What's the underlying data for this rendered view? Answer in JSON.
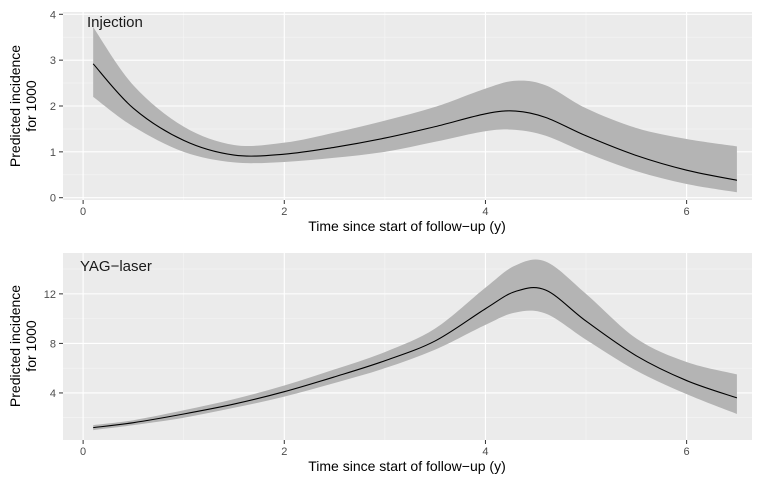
{
  "colors": {
    "panel_background": "#ebebeb",
    "grid_major": "#ffffff",
    "grid_minor": "#f5f5f5",
    "ribbon": "#b4b4b4",
    "line": "#000000"
  },
  "chart_data": [
    {
      "type": "line",
      "title": "Injection",
      "xlabel": "Time since start of follow−up (y)",
      "ylabel": [
        "Predicted incidence",
        "for 1000"
      ],
      "xlim": [
        -0.2,
        6.65
      ],
      "ylim": [
        -0.05,
        4.05
      ],
      "xticks": [
        0,
        2,
        4,
        6
      ],
      "xtick_labels": [
        "0",
        "2",
        "4",
        "6"
      ],
      "yticks": [
        0,
        1,
        2,
        3,
        4
      ],
      "ytick_labels": [
        "0",
        "1",
        "2",
        "3",
        "4"
      ],
      "grid": true,
      "series": [
        {
          "x": [
            0.1,
            0.5,
            1.0,
            1.5,
            2.0,
            2.5,
            3.0,
            3.5,
            4.0,
            4.3,
            4.6,
            5.0,
            5.5,
            6.0,
            6.5
          ],
          "y": [
            2.92,
            1.95,
            1.25,
            0.93,
            0.95,
            1.1,
            1.3,
            1.55,
            1.83,
            1.89,
            1.75,
            1.35,
            0.92,
            0.6,
            0.38
          ],
          "lower": [
            2.2,
            1.55,
            1.0,
            0.77,
            0.78,
            0.87,
            1.0,
            1.22,
            1.45,
            1.48,
            1.35,
            0.98,
            0.58,
            0.3,
            0.12
          ],
          "upper": [
            3.72,
            2.45,
            1.55,
            1.15,
            1.2,
            1.42,
            1.68,
            1.98,
            2.38,
            2.55,
            2.45,
            1.95,
            1.52,
            1.28,
            1.12
          ]
        }
      ]
    },
    {
      "type": "line",
      "title": "YAG−laser",
      "xlabel": "Time since start of follow−up (y)",
      "ylabel": [
        "Predicted incidence",
        "for 1000"
      ],
      "xlim": [
        -0.2,
        6.65
      ],
      "ylim": [
        0.2,
        15.3
      ],
      "xticks": [
        0,
        2,
        4,
        6
      ],
      "xtick_labels": [
        "0",
        "2",
        "4",
        "6"
      ],
      "yticks": [
        4,
        8,
        12
      ],
      "ytick_labels": [
        "4",
        "8",
        "12"
      ],
      "grid": true,
      "series": [
        {
          "x": [
            0.1,
            0.5,
            1.0,
            1.5,
            2.0,
            2.5,
            3.0,
            3.5,
            4.0,
            4.3,
            4.6,
            5.0,
            5.5,
            6.0,
            6.5
          ],
          "y": [
            1.2,
            1.6,
            2.3,
            3.1,
            4.1,
            5.3,
            6.6,
            8.2,
            10.8,
            12.2,
            12.3,
            9.8,
            7.0,
            5.0,
            3.6
          ],
          "lower": [
            1.0,
            1.4,
            2.0,
            2.8,
            3.7,
            4.8,
            6.0,
            7.5,
            9.5,
            10.5,
            10.4,
            8.3,
            5.8,
            3.9,
            2.3
          ],
          "upper": [
            1.4,
            1.8,
            2.6,
            3.5,
            4.6,
            5.9,
            7.3,
            9.2,
            12.5,
            14.3,
            14.6,
            12.0,
            8.4,
            6.5,
            5.5
          ]
        }
      ]
    }
  ]
}
